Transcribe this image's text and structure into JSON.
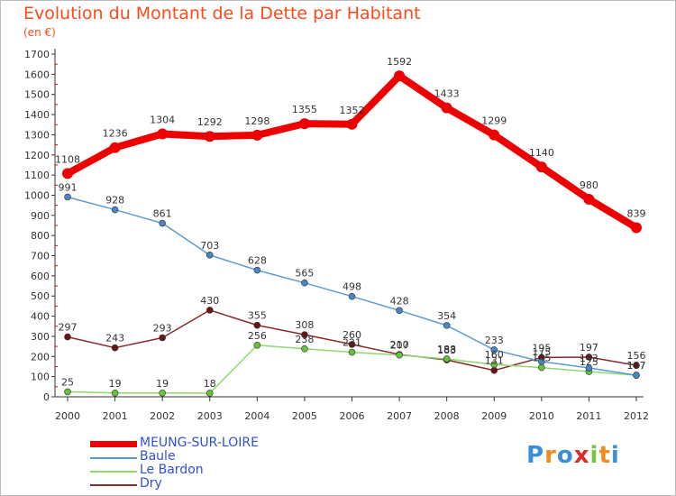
{
  "title": "Evolution du Montant de la Dette par Habitant",
  "unit": "(en €)",
  "brand": {
    "letters": [
      "P",
      "r",
      "o",
      "x",
      "i",
      "t",
      "i"
    ],
    "colors": [
      "#3a8fd8",
      "#f08c1c",
      "#3a8fd8",
      "#e02c2c",
      "#7cc242",
      "#f08c1c",
      "#3a8fd8"
    ]
  },
  "chart_data": {
    "type": "line",
    "x": [
      "2000",
      "2001",
      "2002",
      "2003",
      "2004",
      "2005",
      "2006",
      "2007",
      "2008",
      "2009",
      "2010",
      "2011",
      "2012"
    ],
    "ylim": [
      0,
      1700
    ],
    "yticks": [
      "0",
      "100",
      "200",
      "300",
      "400",
      "500",
      "600",
      "700",
      "800",
      "900",
      "1000",
      "1100",
      "1200",
      "1300",
      "1400",
      "1500",
      "1600",
      "1700"
    ],
    "grid": false,
    "legend": "bottom-left",
    "series": [
      {
        "name": "MEUNG-SUR-LOIRE",
        "color": "#ee0000",
        "marker": "#ee0000",
        "width": 8,
        "marker_r": 6,
        "values": [
          1108,
          1236,
          1304,
          1292,
          1298,
          1355,
          1352,
          1592,
          1433,
          1299,
          1140,
          980,
          839
        ],
        "labels": [
          "1108",
          "1236",
          "1304",
          "1292",
          "1298",
          "1355",
          "1352",
          "1592",
          "1433",
          "1299",
          "1140",
          "980",
          "839"
        ]
      },
      {
        "name": "Baule",
        "color": "#5b9bd5",
        "marker": "#4a86c5",
        "width": 1.5,
        "marker_r": 3.5,
        "values": [
          991,
          928,
          861,
          703,
          628,
          565,
          498,
          428,
          354,
          233,
          175,
          143,
          107
        ],
        "labels": [
          "991",
          "928",
          "861",
          "703",
          "628",
          "565",
          "498",
          "428",
          "354",
          "233",
          "175",
          "143",
          "107"
        ]
      },
      {
        "name": "Le Bardon",
        "color": "#8fd870",
        "marker": "#66c23a",
        "width": 1.5,
        "marker_r": 3.5,
        "values": [
          25,
          19,
          19,
          18,
          256,
          238,
          221,
          207,
          188,
          160,
          145,
          125,
          107
        ],
        "labels": [
          "25",
          "19",
          "19",
          "18",
          "256",
          "238",
          "221",
          "207",
          "188",
          "160",
          "145",
          "125",
          "107"
        ]
      },
      {
        "name": "Dry",
        "color": "#8a2a2a",
        "marker": "#6b1414",
        "width": 1.5,
        "marker_r": 3.5,
        "values": [
          297,
          243,
          293,
          430,
          355,
          308,
          260,
          210,
          183,
          131,
          195,
          197,
          156
        ],
        "labels": [
          "297",
          "243",
          "293",
          "430",
          "355",
          "308",
          "260",
          "210",
          "183",
          "131",
          "195",
          "197",
          "156"
        ]
      }
    ]
  }
}
